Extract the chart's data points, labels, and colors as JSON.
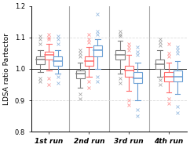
{
  "title": "",
  "ylabel": "LDSA ratio Partector",
  "ylim": [
    0.8,
    1.2
  ],
  "yticks": [
    0.8,
    0.9,
    1.0,
    1.1,
    1.2
  ],
  "group_labels": [
    "1st run",
    "2nd run",
    "3rd run",
    "4th run"
  ],
  "colors": [
    "#808080",
    "#ff6b6b",
    "#6b9fd4"
  ],
  "color_names": [
    "gray",
    "pink",
    "blue"
  ],
  "figsize": [
    2.42,
    1.89
  ],
  "dpi": 100,
  "boxes": {
    "run1": {
      "gray": {
        "q1": 1.015,
        "med": 1.03,
        "q3": 1.04,
        "whislo": 0.99,
        "whishi": 1.06,
        "fliers": [
          0.96,
          0.97,
          1.08,
          1.095,
          1.105
        ]
      },
      "pink": {
        "q1": 1.03,
        "med": 1.045,
        "q3": 1.055,
        "whislo": 0.995,
        "whishi": 1.08,
        "fliers": [
          0.95,
          0.97,
          1.095,
          1.1,
          1.11
        ]
      },
      "blue": {
        "q1": 1.01,
        "med": 1.025,
        "q3": 1.04,
        "whislo": 0.985,
        "whishi": 1.06,
        "fliers": [
          0.955,
          0.975,
          1.08,
          1.095,
          1.105
        ]
      }
    },
    "run2": {
      "gray": {
        "q1": 0.97,
        "med": 0.985,
        "q3": 0.995,
        "whislo": 0.94,
        "whishi": 1.02,
        "fliers": [
          0.905,
          0.92,
          1.04,
          1.05,
          1.06
        ]
      },
      "pink": {
        "q1": 1.01,
        "med": 1.025,
        "q3": 1.04,
        "whislo": 0.975,
        "whishi": 1.07,
        "fliers": [
          0.94,
          0.96,
          1.085,
          1.095,
          1.11
        ]
      },
      "blue": {
        "q1": 1.04,
        "med": 1.06,
        "q3": 1.075,
        "whislo": 1.0,
        "whishi": 1.095,
        "fliers": [
          0.96,
          0.975,
          1.11,
          1.12,
          1.175
        ]
      }
    },
    "run3": {
      "gray": {
        "q1": 1.03,
        "med": 1.045,
        "q3": 1.06,
        "whislo": 0.985,
        "whishi": 1.09,
        "fliers": [
          0.955,
          0.97,
          1.105,
          1.11,
          1.12
        ]
      },
      "pink": {
        "q1": 0.975,
        "med": 0.995,
        "q3": 1.01,
        "whislo": 0.93,
        "whishi": 1.045,
        "fliers": [
          0.885,
          0.9,
          1.06,
          1.07,
          1.08
        ]
      },
      "blue": {
        "q1": 0.955,
        "med": 0.97,
        "q3": 0.99,
        "whislo": 0.9,
        "whishi": 1.02,
        "fliers": [
          0.85,
          0.87,
          1.045,
          1.055,
          1.07
        ]
      }
    },
    "run4": {
      "gray": {
        "q1": 1.0,
        "med": 1.015,
        "q3": 1.03,
        "whislo": 0.975,
        "whishi": 1.06,
        "fliers": [
          0.95,
          0.965,
          1.075,
          1.085,
          1.095
        ]
      },
      "pink": {
        "q1": 0.96,
        "med": 0.975,
        "q3": 0.99,
        "whislo": 0.925,
        "whishi": 1.02,
        "fliers": [
          0.89,
          0.905,
          1.04,
          1.05,
          1.08
        ]
      },
      "blue": {
        "q1": 0.96,
        "med": 0.975,
        "q3": 0.995,
        "whislo": 0.92,
        "whishi": 1.025,
        "fliers": [
          0.86,
          0.88,
          1.05,
          1.06,
          1.07
        ]
      }
    }
  },
  "box_width": 0.22,
  "vline_color": "#aaaaaa",
  "hline_color": "#000000",
  "grid_color": "#dddddd",
  "flier_marker": "x",
  "flier_size": 3,
  "linewidth": 0.8
}
